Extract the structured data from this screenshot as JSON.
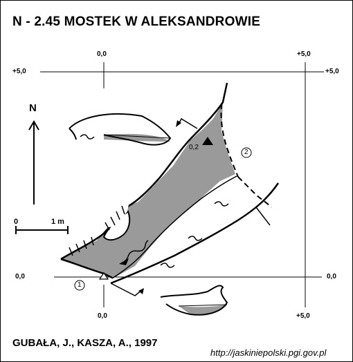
{
  "title": "N - 2.45  MOSTEK W ALEKSANDROWIE",
  "authors": "GUBAŁA, J., KASZA, A., 1997",
  "source_url": "http://jaskiniepolski.pgi.gov.pl",
  "grid_labels": {
    "top_left": "0,0",
    "top_right": "+5,0",
    "left_top": "+5,0",
    "right_top": "+5,0",
    "left_bottom": "0,0",
    "right_bottom": "0,0",
    "bottom_left": "0,0",
    "bottom_right": "+5,0"
  },
  "north_label": "N",
  "scale_labels": {
    "zero": "0",
    "meter": "1 m"
  },
  "height_label": "0,2",
  "point_labels": {
    "p1": "1",
    "p2": "2"
  },
  "colors": {
    "fill": "#9a9a9a",
    "line": "#000000"
  }
}
